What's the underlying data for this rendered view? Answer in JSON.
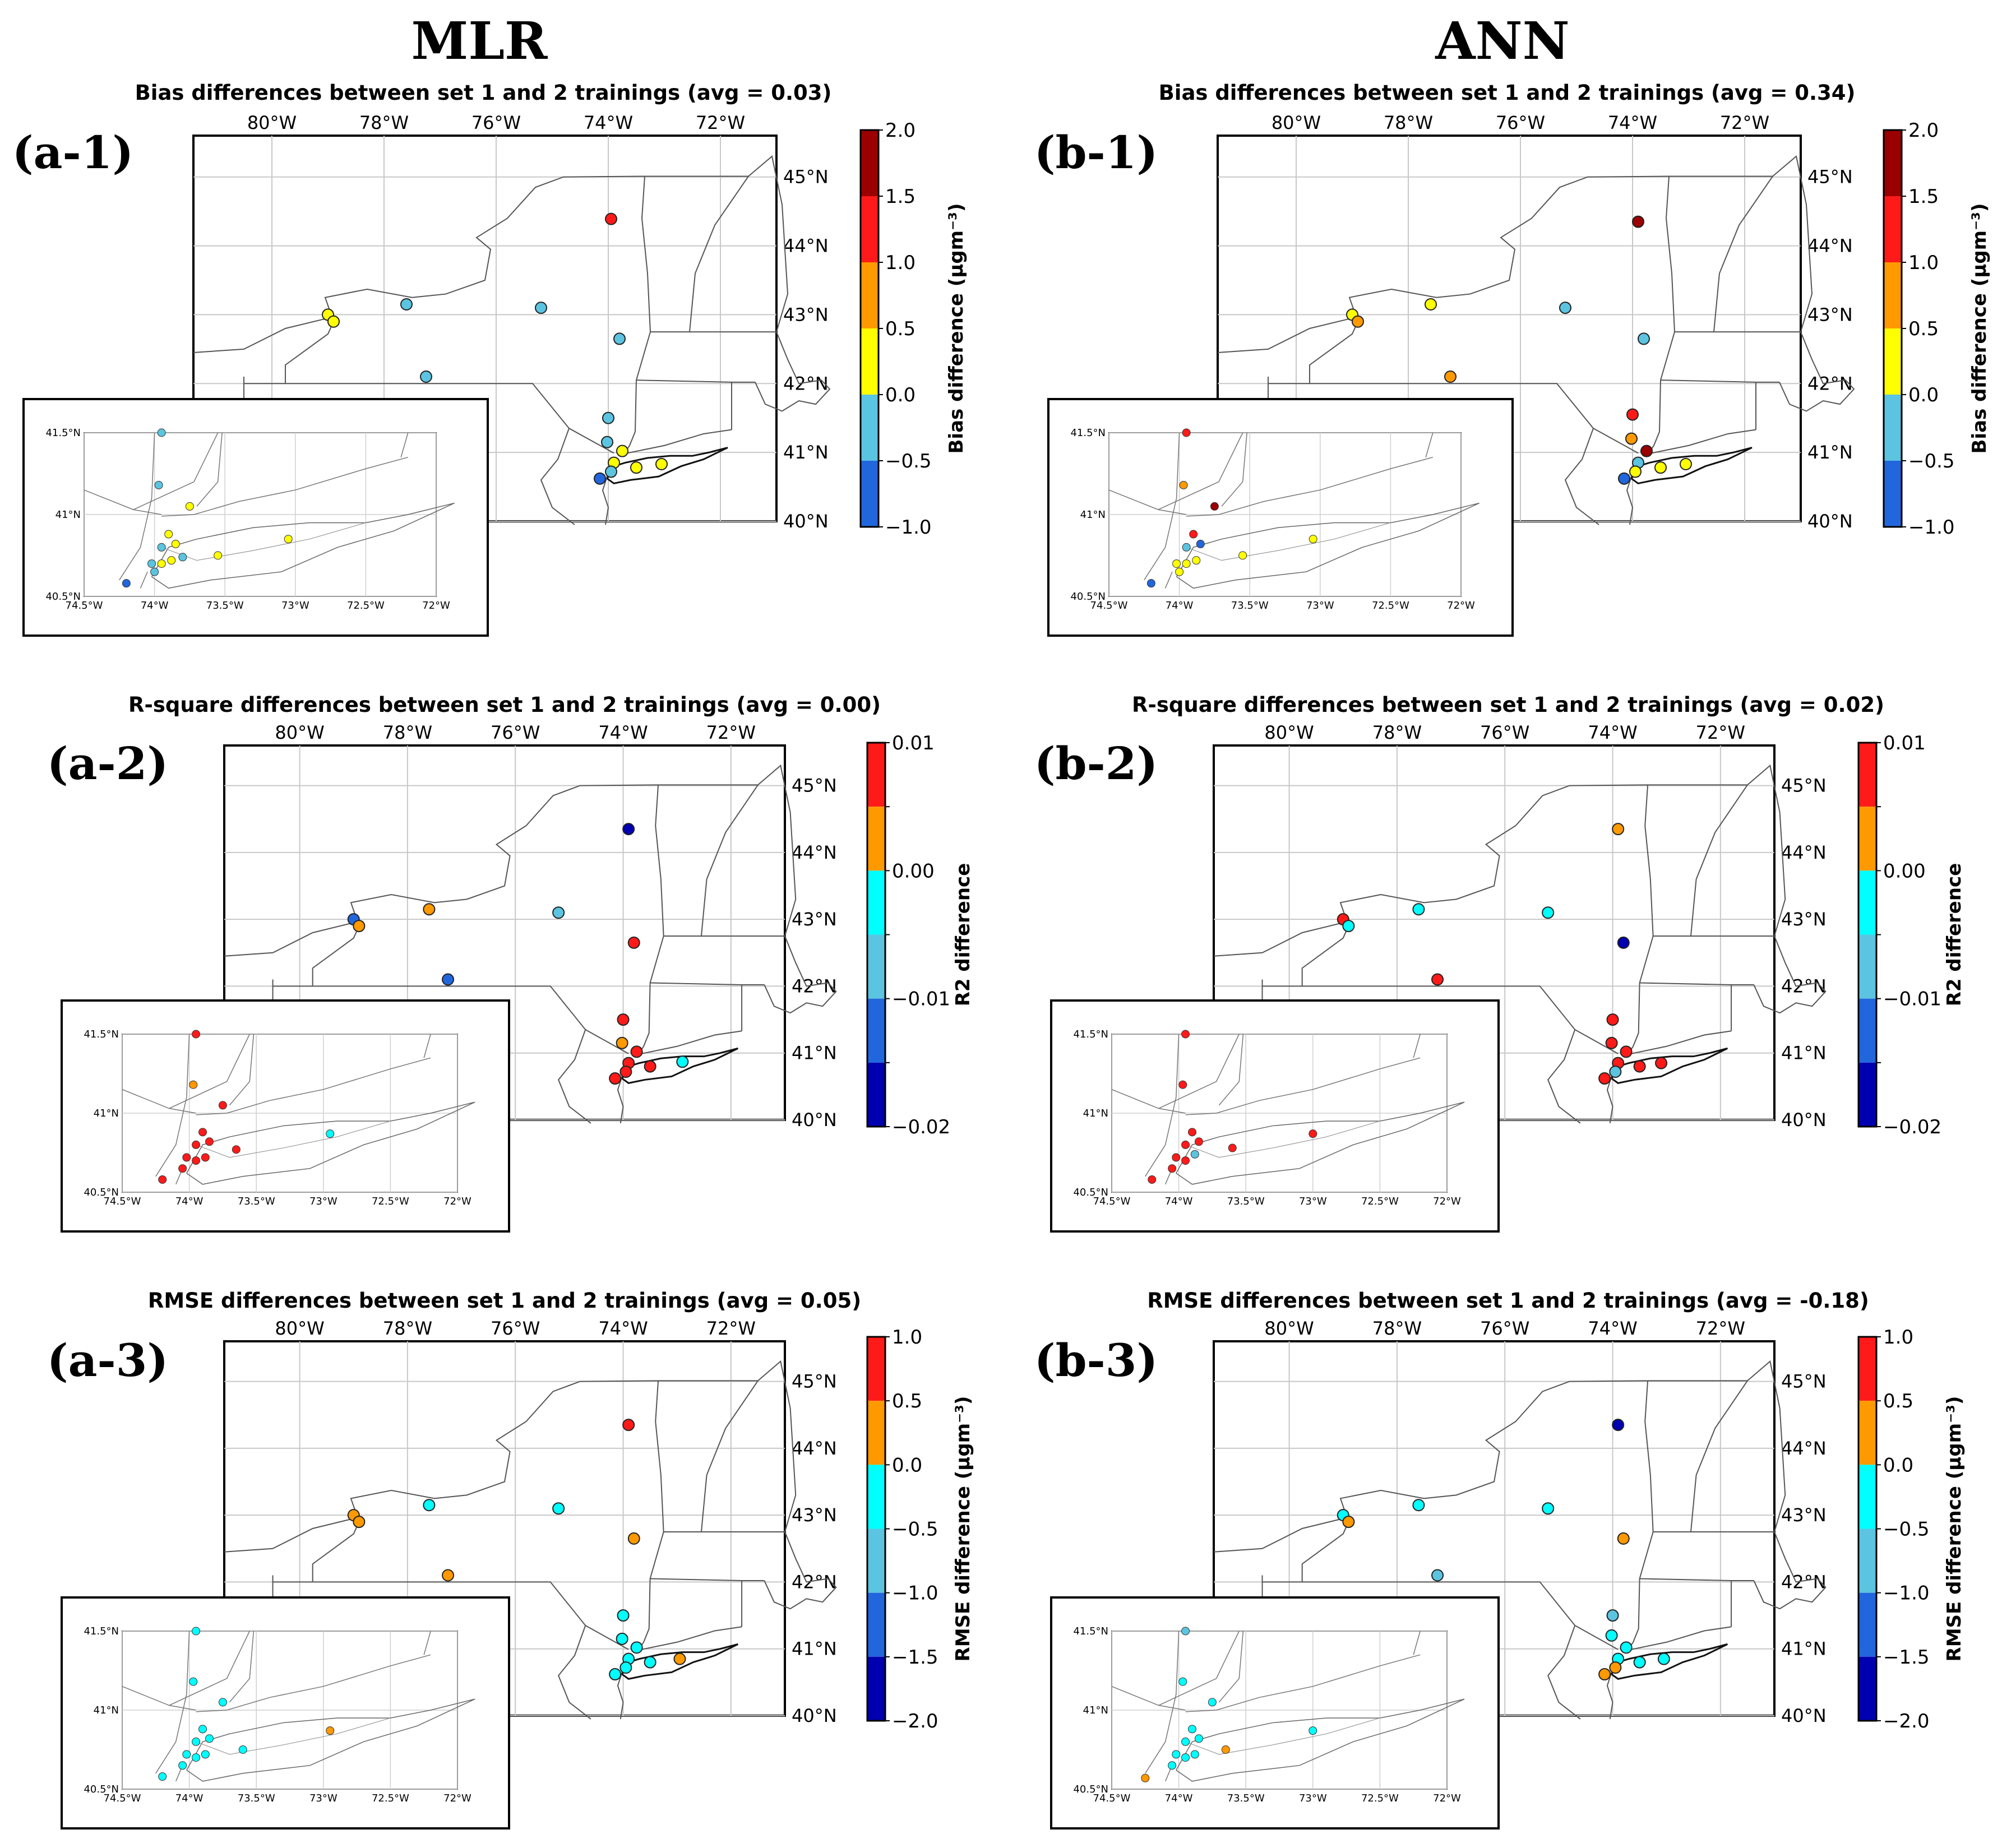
{
  "columns": [
    "MLR",
    "ANN"
  ],
  "colors": {
    "bias": [
      "#2166dc",
      "#5bc4e0",
      "#ffff00",
      "#ff9900",
      "#ff1a1a",
      "#9a0000"
    ],
    "r2": [
      "#0000b0",
      "#2166dc",
      "#5bc4e0",
      "#00ffff",
      "#ff9900",
      "#ff1a1a"
    ],
    "rmse": [
      "#0000b0",
      "#2166dc",
      "#5bc4e0",
      "#00ffff",
      "#ff9900",
      "#ff1a1a"
    ]
  },
  "axes": {
    "lon_ticks": [
      "80°W",
      "78°W",
      "76°W",
      "74°W",
      "72°W"
    ],
    "lat_ticks": [
      "45°N",
      "44°N",
      "43°N",
      "42°N",
      "41°N",
      "40°N"
    ],
    "inset_lon_ticks": [
      "74.5°W",
      "74°W",
      "73.5°W",
      "73°W",
      "72.5°W",
      "72°W"
    ],
    "inset_lat_ticks": [
      "41.5°N",
      "41°N",
      "40.5°N"
    ]
  },
  "panels": [
    {
      "id": "a-1",
      "label": "(a-1)",
      "metric": "bias",
      "title": "Bias differences between set 1 and 2 trainings (avg = 0.03)",
      "cb_ticks": [
        "2.0",
        "1.5",
        "1.0",
        "0.5",
        "0.0",
        "−0.5",
        "−1.0"
      ],
      "cb_label": "Bias difference (μgm⁻³)",
      "stations": [
        {
          "lon": -73.95,
          "lat": 44.39,
          "c": 4
        },
        {
          "lon": -79.0,
          "lat": 43.0,
          "c": 2
        },
        {
          "lon": -78.9,
          "lat": 42.9,
          "c": 2
        },
        {
          "lon": -77.6,
          "lat": 43.15,
          "c": 1
        },
        {
          "lon": -75.2,
          "lat": 43.1,
          "c": 1
        },
        {
          "lon": -73.8,
          "lat": 42.65,
          "c": 1
        },
        {
          "lon": -77.25,
          "lat": 42.1,
          "c": 1
        },
        {
          "lon": -74.0,
          "lat": 41.5,
          "c": 1
        },
        {
          "lon": -74.02,
          "lat": 41.15,
          "c": 1
        },
        {
          "lon": -73.75,
          "lat": 41.02,
          "c": 2
        },
        {
          "lon": -73.9,
          "lat": 40.85,
          "c": 2
        },
        {
          "lon": -73.5,
          "lat": 40.78,
          "c": 2
        },
        {
          "lon": -73.05,
          "lat": 40.83,
          "c": 2
        },
        {
          "lon": -73.95,
          "lat": 40.72,
          "c": 1
        },
        {
          "lon": -74.15,
          "lat": 40.62,
          "c": 0
        }
      ],
      "inset_stations": [
        {
          "lon": -73.95,
          "lat": 41.5,
          "c": 1
        },
        {
          "lon": -73.97,
          "lat": 41.18,
          "c": 1
        },
        {
          "lon": -73.75,
          "lat": 41.05,
          "c": 2
        },
        {
          "lon": -73.9,
          "lat": 40.88,
          "c": 2
        },
        {
          "lon": -73.85,
          "lat": 40.82,
          "c": 2
        },
        {
          "lon": -73.95,
          "lat": 40.8,
          "c": 1
        },
        {
          "lon": -73.8,
          "lat": 40.74,
          "c": 1
        },
        {
          "lon": -73.88,
          "lat": 40.72,
          "c": 2
        },
        {
          "lon": -73.95,
          "lat": 40.7,
          "c": 2
        },
        {
          "lon": -74.02,
          "lat": 40.7,
          "c": 1
        },
        {
          "lon": -73.55,
          "lat": 40.75,
          "c": 2
        },
        {
          "lon": -73.05,
          "lat": 40.85,
          "c": 2
        },
        {
          "lon": -74.0,
          "lat": 40.65,
          "c": 1
        },
        {
          "lon": -74.2,
          "lat": 40.58,
          "c": 0
        }
      ]
    },
    {
      "id": "b-1",
      "label": "(b-1)",
      "metric": "bias",
      "title": "Bias differences between set 1 and 2 trainings (avg = 0.34)",
      "cb_ticks": [
        "2.0",
        "1.5",
        "1.0",
        "0.5",
        "0.0",
        "−0.5",
        "−1.0"
      ],
      "cb_label": "Bias difference (μgm⁻³)",
      "stations": [
        {
          "lon": -73.9,
          "lat": 44.35,
          "c": 5
        },
        {
          "lon": -79.0,
          "lat": 43.0,
          "c": 2
        },
        {
          "lon": -78.9,
          "lat": 42.9,
          "c": 3
        },
        {
          "lon": -77.6,
          "lat": 43.15,
          "c": 2
        },
        {
          "lon": -75.2,
          "lat": 43.1,
          "c": 1
        },
        {
          "lon": -73.8,
          "lat": 42.65,
          "c": 1
        },
        {
          "lon": -77.25,
          "lat": 42.1,
          "c": 3
        },
        {
          "lon": -74.0,
          "lat": 41.55,
          "c": 4
        },
        {
          "lon": -74.02,
          "lat": 41.2,
          "c": 3
        },
        {
          "lon": -73.75,
          "lat": 41.02,
          "c": 5
        },
        {
          "lon": -73.9,
          "lat": 40.85,
          "c": 1
        },
        {
          "lon": -73.5,
          "lat": 40.78,
          "c": 2
        },
        {
          "lon": -73.05,
          "lat": 40.83,
          "c": 2
        },
        {
          "lon": -73.95,
          "lat": 40.72,
          "c": 2
        },
        {
          "lon": -74.15,
          "lat": 40.62,
          "c": 0
        }
      ],
      "inset_stations": [
        {
          "lon": -73.95,
          "lat": 41.5,
          "c": 4
        },
        {
          "lon": -73.97,
          "lat": 41.18,
          "c": 3
        },
        {
          "lon": -73.75,
          "lat": 41.05,
          "c": 5
        },
        {
          "lon": -73.9,
          "lat": 40.88,
          "c": 4
        },
        {
          "lon": -73.85,
          "lat": 40.82,
          "c": 0
        },
        {
          "lon": -73.95,
          "lat": 40.8,
          "c": 1
        },
        {
          "lon": -73.88,
          "lat": 40.72,
          "c": 2
        },
        {
          "lon": -73.95,
          "lat": 40.7,
          "c": 2
        },
        {
          "lon": -74.02,
          "lat": 40.7,
          "c": 2
        },
        {
          "lon": -73.55,
          "lat": 40.75,
          "c": 2
        },
        {
          "lon": -73.05,
          "lat": 40.85,
          "c": 2
        },
        {
          "lon": -74.0,
          "lat": 40.65,
          "c": 2
        },
        {
          "lon": -74.2,
          "lat": 40.58,
          "c": 0
        }
      ]
    },
    {
      "id": "a-2",
      "label": "(a-2)",
      "metric": "r2",
      "title": "R-square differences between set 1 and 2 trainings (avg = 0.00)",
      "cb_ticks": [
        "0.01",
        "",
        "0.00",
        "",
        "−0.01",
        "",
        "−0.02"
      ],
      "cb_label": "R2 difference",
      "stations": [
        {
          "lon": -73.9,
          "lat": 44.35,
          "c": 0
        },
        {
          "lon": -79.0,
          "lat": 43.0,
          "c": 1
        },
        {
          "lon": -78.9,
          "lat": 42.9,
          "c": 4
        },
        {
          "lon": -77.6,
          "lat": 43.15,
          "c": 4
        },
        {
          "lon": -75.2,
          "lat": 43.1,
          "c": 2
        },
        {
          "lon": -73.8,
          "lat": 42.65,
          "c": 5
        },
        {
          "lon": -77.25,
          "lat": 42.1,
          "c": 1
        },
        {
          "lon": -74.0,
          "lat": 41.5,
          "c": 5
        },
        {
          "lon": -74.02,
          "lat": 41.15,
          "c": 4
        },
        {
          "lon": -73.75,
          "lat": 41.02,
          "c": 5
        },
        {
          "lon": -73.9,
          "lat": 40.85,
          "c": 5
        },
        {
          "lon": -73.5,
          "lat": 40.8,
          "c": 5
        },
        {
          "lon": -72.9,
          "lat": 40.87,
          "c": 3
        },
        {
          "lon": -73.95,
          "lat": 40.72,
          "c": 5
        },
        {
          "lon": -74.15,
          "lat": 40.62,
          "c": 5
        }
      ],
      "inset_stations": [
        {
          "lon": -73.95,
          "lat": 41.5,
          "c": 5
        },
        {
          "lon": -73.97,
          "lat": 41.18,
          "c": 4
        },
        {
          "lon": -73.75,
          "lat": 41.05,
          "c": 5
        },
        {
          "lon": -73.9,
          "lat": 40.88,
          "c": 5
        },
        {
          "lon": -73.85,
          "lat": 40.82,
          "c": 5
        },
        {
          "lon": -73.95,
          "lat": 40.8,
          "c": 5
        },
        {
          "lon": -73.88,
          "lat": 40.72,
          "c": 5
        },
        {
          "lon": -73.95,
          "lat": 40.7,
          "c": 5
        },
        {
          "lon": -74.02,
          "lat": 40.72,
          "c": 5
        },
        {
          "lon": -73.65,
          "lat": 40.77,
          "c": 5
        },
        {
          "lon": -72.95,
          "lat": 40.87,
          "c": 3
        },
        {
          "lon": -74.05,
          "lat": 40.65,
          "c": 5
        },
        {
          "lon": -74.2,
          "lat": 40.58,
          "c": 5
        }
      ]
    },
    {
      "id": "b-2",
      "label": "(b-2)",
      "metric": "r2",
      "title": "R-square differences between set 1 and 2 trainings (avg = 0.02)",
      "cb_ticks": [
        "0.01",
        "",
        "0.00",
        "",
        "−0.01",
        "",
        "−0.02"
      ],
      "cb_label": "R2 difference",
      "stations": [
        {
          "lon": -73.9,
          "lat": 44.35,
          "c": 4
        },
        {
          "lon": -79.0,
          "lat": 43.0,
          "c": 5
        },
        {
          "lon": -78.9,
          "lat": 42.9,
          "c": 3
        },
        {
          "lon": -77.6,
          "lat": 43.15,
          "c": 3
        },
        {
          "lon": -75.2,
          "lat": 43.1,
          "c": 3
        },
        {
          "lon": -73.8,
          "lat": 42.65,
          "c": 0
        },
        {
          "lon": -77.25,
          "lat": 42.1,
          "c": 5
        },
        {
          "lon": -74.0,
          "lat": 41.5,
          "c": 5
        },
        {
          "lon": -74.02,
          "lat": 41.15,
          "c": 5
        },
        {
          "lon": -73.75,
          "lat": 41.02,
          "c": 5
        },
        {
          "lon": -73.9,
          "lat": 40.85,
          "c": 5
        },
        {
          "lon": -73.5,
          "lat": 40.8,
          "c": 5
        },
        {
          "lon": -73.1,
          "lat": 40.85,
          "c": 5
        },
        {
          "lon": -73.95,
          "lat": 40.72,
          "c": 2
        },
        {
          "lon": -74.15,
          "lat": 40.62,
          "c": 5
        }
      ],
      "inset_stations": [
        {
          "lon": -73.95,
          "lat": 41.5,
          "c": 5
        },
        {
          "lon": -73.97,
          "lat": 41.18,
          "c": 5
        },
        {
          "lon": -73.9,
          "lat": 40.88,
          "c": 5
        },
        {
          "lon": -73.85,
          "lat": 40.82,
          "c": 5
        },
        {
          "lon": -73.95,
          "lat": 40.8,
          "c": 5
        },
        {
          "lon": -73.88,
          "lat": 40.74,
          "c": 2
        },
        {
          "lon": -73.95,
          "lat": 40.7,
          "c": 5
        },
        {
          "lon": -74.02,
          "lat": 40.72,
          "c": 5
        },
        {
          "lon": -73.6,
          "lat": 40.78,
          "c": 5
        },
        {
          "lon": -73.0,
          "lat": 40.87,
          "c": 5
        },
        {
          "lon": -74.05,
          "lat": 40.65,
          "c": 5
        },
        {
          "lon": -74.2,
          "lat": 40.58,
          "c": 5
        }
      ]
    },
    {
      "id": "a-3",
      "label": "(a-3)",
      "metric": "rmse",
      "title": "RMSE differences between set 1 and 2 trainings (avg = 0.05)",
      "cb_ticks": [
        "1.0",
        "0.5",
        "0.0",
        "−0.5",
        "−1.0",
        "−1.5",
        "−2.0"
      ],
      "cb_label": "RMSE difference (μgm⁻³)",
      "stations": [
        {
          "lon": -73.9,
          "lat": 44.35,
          "c": 5
        },
        {
          "lon": -79.0,
          "lat": 43.0,
          "c": 4
        },
        {
          "lon": -78.9,
          "lat": 42.9,
          "c": 4
        },
        {
          "lon": -77.6,
          "lat": 43.15,
          "c": 3
        },
        {
          "lon": -75.2,
          "lat": 43.1,
          "c": 3
        },
        {
          "lon": -73.8,
          "lat": 42.65,
          "c": 4
        },
        {
          "lon": -77.25,
          "lat": 42.1,
          "c": 4
        },
        {
          "lon": -74.0,
          "lat": 41.5,
          "c": 3
        },
        {
          "lon": -74.02,
          "lat": 41.15,
          "c": 3
        },
        {
          "lon": -73.75,
          "lat": 41.02,
          "c": 3
        },
        {
          "lon": -73.9,
          "lat": 40.85,
          "c": 3
        },
        {
          "lon": -73.5,
          "lat": 40.8,
          "c": 3
        },
        {
          "lon": -72.95,
          "lat": 40.85,
          "c": 4
        },
        {
          "lon": -73.95,
          "lat": 40.72,
          "c": 3
        },
        {
          "lon": -74.15,
          "lat": 40.62,
          "c": 3
        }
      ],
      "inset_stations": [
        {
          "lon": -73.95,
          "lat": 41.5,
          "c": 3
        },
        {
          "lon": -73.97,
          "lat": 41.18,
          "c": 3
        },
        {
          "lon": -73.75,
          "lat": 41.05,
          "c": 3
        },
        {
          "lon": -73.9,
          "lat": 40.88,
          "c": 3
        },
        {
          "lon": -73.85,
          "lat": 40.82,
          "c": 3
        },
        {
          "lon": -73.95,
          "lat": 40.8,
          "c": 3
        },
        {
          "lon": -73.88,
          "lat": 40.72,
          "c": 3
        },
        {
          "lon": -73.95,
          "lat": 40.7,
          "c": 3
        },
        {
          "lon": -74.02,
          "lat": 40.72,
          "c": 3
        },
        {
          "lon": -73.6,
          "lat": 40.75,
          "c": 3
        },
        {
          "lon": -72.95,
          "lat": 40.87,
          "c": 4
        },
        {
          "lon": -74.05,
          "lat": 40.65,
          "c": 3
        },
        {
          "lon": -74.2,
          "lat": 40.58,
          "c": 3
        }
      ]
    },
    {
      "id": "b-3",
      "label": "(b-3)",
      "metric": "rmse",
      "title": "RMSE differences between set 1 and 2 trainings (avg = -0.18)",
      "cb_ticks": [
        "1.0",
        "0.5",
        "0.0",
        "−0.5",
        "−1.0",
        "−1.5",
        "−2.0"
      ],
      "cb_label": "RMSE difference (μgm⁻³)",
      "stations": [
        {
          "lon": -73.9,
          "lat": 44.35,
          "c": 0
        },
        {
          "lon": -79.0,
          "lat": 43.0,
          "c": 3
        },
        {
          "lon": -78.9,
          "lat": 42.9,
          "c": 4
        },
        {
          "lon": -77.6,
          "lat": 43.15,
          "c": 3
        },
        {
          "lon": -75.2,
          "lat": 43.1,
          "c": 3
        },
        {
          "lon": -73.8,
          "lat": 42.65,
          "c": 4
        },
        {
          "lon": -77.25,
          "lat": 42.1,
          "c": 2
        },
        {
          "lon": -74.0,
          "lat": 41.5,
          "c": 2
        },
        {
          "lon": -74.02,
          "lat": 41.2,
          "c": 3
        },
        {
          "lon": -73.75,
          "lat": 41.02,
          "c": 3
        },
        {
          "lon": -73.9,
          "lat": 40.85,
          "c": 3
        },
        {
          "lon": -73.5,
          "lat": 40.8,
          "c": 3
        },
        {
          "lon": -73.05,
          "lat": 40.85,
          "c": 3
        },
        {
          "lon": -73.95,
          "lat": 40.72,
          "c": 4
        },
        {
          "lon": -74.15,
          "lat": 40.62,
          "c": 4
        }
      ],
      "inset_stations": [
        {
          "lon": -73.95,
          "lat": 41.5,
          "c": 2
        },
        {
          "lon": -73.97,
          "lat": 41.18,
          "c": 3
        },
        {
          "lon": -73.75,
          "lat": 41.05,
          "c": 3
        },
        {
          "lon": -73.9,
          "lat": 40.88,
          "c": 3
        },
        {
          "lon": -73.85,
          "lat": 40.82,
          "c": 3
        },
        {
          "lon": -73.95,
          "lat": 40.8,
          "c": 3
        },
        {
          "lon": -73.88,
          "lat": 40.72,
          "c": 3
        },
        {
          "lon": -73.95,
          "lat": 40.7,
          "c": 3
        },
        {
          "lon": -74.02,
          "lat": 40.72,
          "c": 3
        },
        {
          "lon": -73.65,
          "lat": 40.75,
          "c": 4
        },
        {
          "lon": -73.0,
          "lat": 40.87,
          "c": 3
        },
        {
          "lon": -74.05,
          "lat": 40.65,
          "c": 3
        },
        {
          "lon": -74.25,
          "lat": 40.57,
          "c": 4
        }
      ]
    }
  ]
}
